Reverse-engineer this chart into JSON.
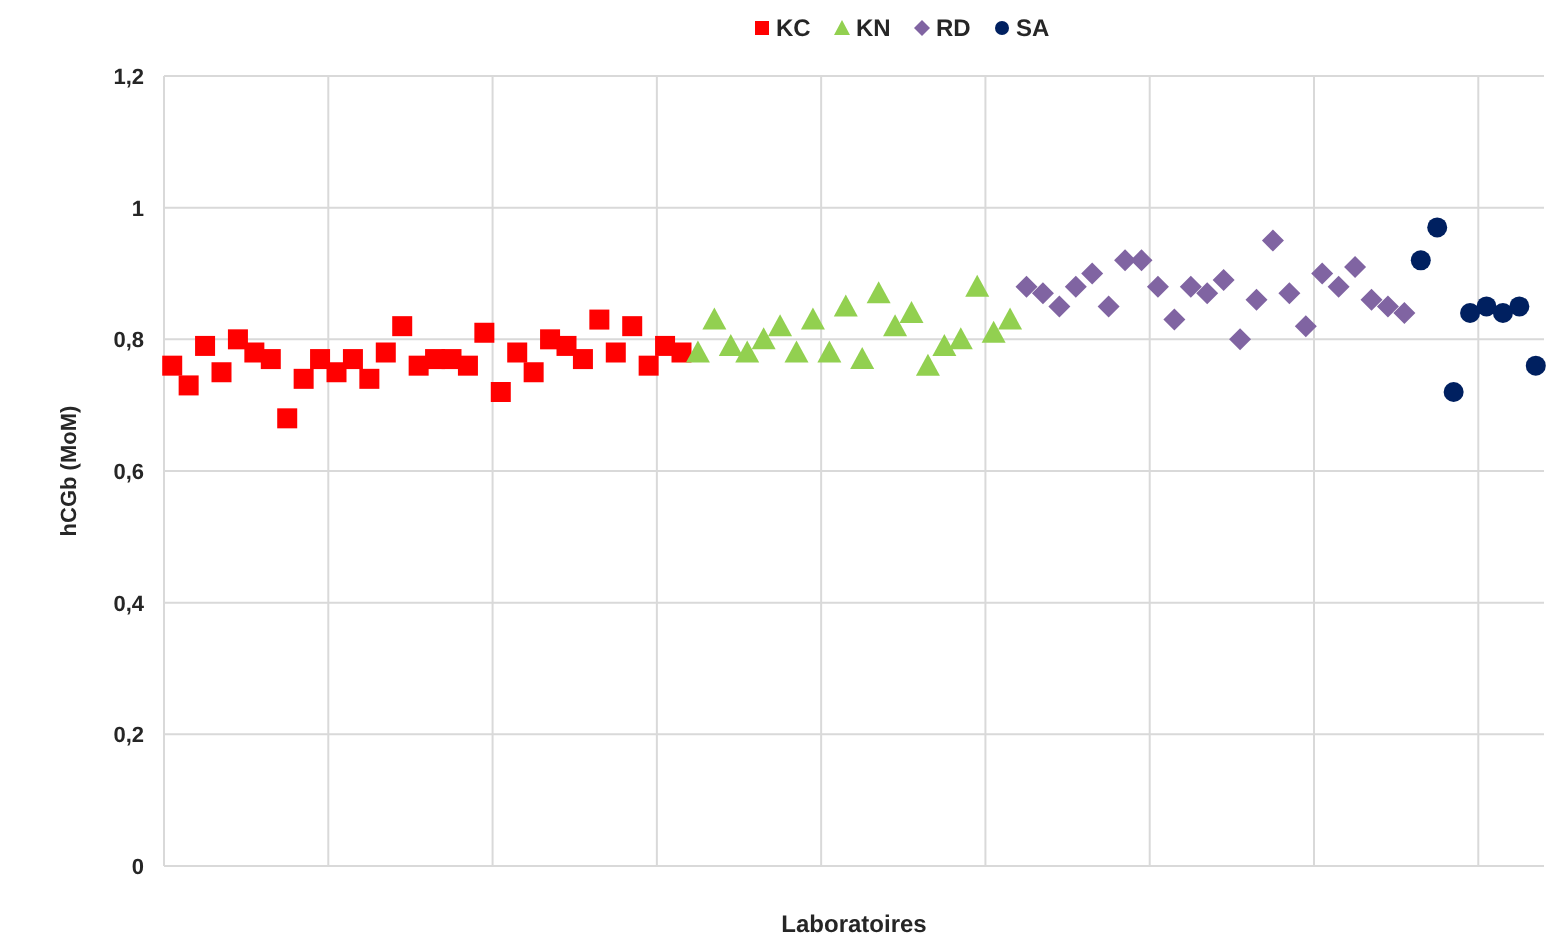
{
  "chart_data": {
    "type": "scatter",
    "xlabel": "Laboratoires",
    "ylabel": "hCGb (MoM)",
    "legend": "top",
    "grid": true,
    "categories": [
      null,
      null,
      null,
      null,
      null,
      null,
      null,
      null,
      null,
      null,
      null,
      null,
      null,
      null,
      null,
      null,
      null,
      null,
      null,
      null,
      null,
      null,
      null,
      null,
      null,
      null,
      null,
      null,
      null,
      null,
      null,
      null,
      null,
      null,
      null,
      null,
      null,
      null,
      null,
      null,
      null,
      null,
      null,
      null,
      null,
      null,
      null,
      null,
      null,
      null,
      null,
      null,
      null,
      null,
      null,
      null,
      null,
      null,
      null,
      null,
      null,
      null,
      null,
      null,
      null,
      null,
      null,
      null,
      null,
      null,
      null,
      null,
      null,
      null,
      null,
      null,
      null,
      null,
      null,
      null,
      null,
      null,
      null,
      null
    ],
    "ylim": [
      0,
      1.2
    ],
    "yticks": [
      {
        "value": 0,
        "label": "0"
      },
      {
        "value": 0.2,
        "label": "0,2"
      },
      {
        "value": 0.4,
        "label": "0,4"
      },
      {
        "value": 0.6,
        "label": "0,6"
      },
      {
        "value": 0.8,
        "label": "0,8"
      },
      {
        "value": 1,
        "label": "1"
      },
      {
        "value": 1.2,
        "label": "1,2"
      }
    ],
    "series": [
      {
        "name": "KC",
        "color": "#ff0000",
        "marker": "square",
        "values": [
          0.76,
          0.73,
          0.79,
          0.75,
          0.8,
          0.78,
          0.77,
          0.68,
          0.74,
          0.77,
          0.75,
          0.77,
          0.74,
          0.78,
          0.82,
          0.76,
          0.77,
          0.77,
          0.76,
          0.81,
          0.72,
          0.78,
          0.75,
          0.8,
          0.79,
          0.77,
          0.83,
          0.78,
          0.82,
          0.76,
          0.79,
          0.78,
          null,
          null,
          null,
          null,
          null,
          null,
          null,
          null,
          null,
          null,
          null,
          null,
          null,
          null,
          null,
          null,
          null,
          null,
          null,
          null,
          null,
          null,
          null,
          null,
          null,
          null,
          null,
          null,
          null,
          null,
          null,
          null,
          null,
          null,
          null,
          null,
          null,
          null,
          null,
          null,
          null,
          null,
          null,
          null,
          null,
          null,
          null,
          null,
          null,
          null,
          null,
          null
        ]
      },
      {
        "name": "KN",
        "color": "#92d050",
        "marker": "triangle",
        "values": [
          null,
          null,
          null,
          null,
          null,
          null,
          null,
          null,
          null,
          null,
          null,
          null,
          null,
          null,
          null,
          null,
          null,
          null,
          null,
          null,
          null,
          null,
          null,
          null,
          null,
          null,
          null,
          null,
          null,
          null,
          null,
          null,
          0.78,
          0.83,
          0.79,
          0.78,
          0.8,
          0.82,
          0.78,
          0.83,
          0.78,
          0.85,
          0.77,
          0.87,
          0.82,
          0.84,
          0.76,
          0.79,
          0.8,
          0.88,
          0.81,
          0.83,
          null,
          null,
          null,
          null,
          null,
          null,
          null,
          null,
          null,
          null,
          null,
          null,
          null,
          null,
          null,
          null,
          null,
          null,
          null,
          null,
          null,
          null,
          null,
          null,
          null,
          null,
          null,
          null,
          null,
          null,
          null,
          null
        ]
      },
      {
        "name": "RD",
        "color": "#8064a2",
        "marker": "diamond",
        "values": [
          null,
          null,
          null,
          null,
          null,
          null,
          null,
          null,
          null,
          null,
          null,
          null,
          null,
          null,
          null,
          null,
          null,
          null,
          null,
          null,
          null,
          null,
          null,
          null,
          null,
          null,
          null,
          null,
          null,
          null,
          null,
          null,
          null,
          null,
          null,
          null,
          null,
          null,
          null,
          null,
          null,
          null,
          null,
          null,
          null,
          null,
          null,
          null,
          null,
          null,
          null,
          null,
          0.88,
          0.87,
          0.85,
          0.88,
          0.9,
          0.85,
          0.92,
          0.92,
          0.88,
          0.83,
          0.88,
          0.87,
          0.89,
          0.8,
          0.86,
          0.95,
          0.87,
          0.82,
          0.9,
          0.88,
          0.91,
          0.86,
          0.85,
          0.84,
          null,
          null,
          null,
          null,
          null,
          null,
          null,
          null
        ]
      },
      {
        "name": "SA",
        "color": "#002060",
        "marker": "circle",
        "values": [
          null,
          null,
          null,
          null,
          null,
          null,
          null,
          null,
          null,
          null,
          null,
          null,
          null,
          null,
          null,
          null,
          null,
          null,
          null,
          null,
          null,
          null,
          null,
          null,
          null,
          null,
          null,
          null,
          null,
          null,
          null,
          null,
          null,
          null,
          null,
          null,
          null,
          null,
          null,
          null,
          null,
          null,
          null,
          null,
          null,
          null,
          null,
          null,
          null,
          null,
          null,
          null,
          null,
          null,
          null,
          null,
          null,
          null,
          null,
          null,
          null,
          null,
          null,
          null,
          null,
          null,
          null,
          null,
          null,
          null,
          null,
          null,
          null,
          null,
          null,
          null,
          0.92,
          0.97,
          0.72,
          0.84,
          0.85,
          0.84,
          0.85,
          0.76
        ]
      }
    ]
  }
}
